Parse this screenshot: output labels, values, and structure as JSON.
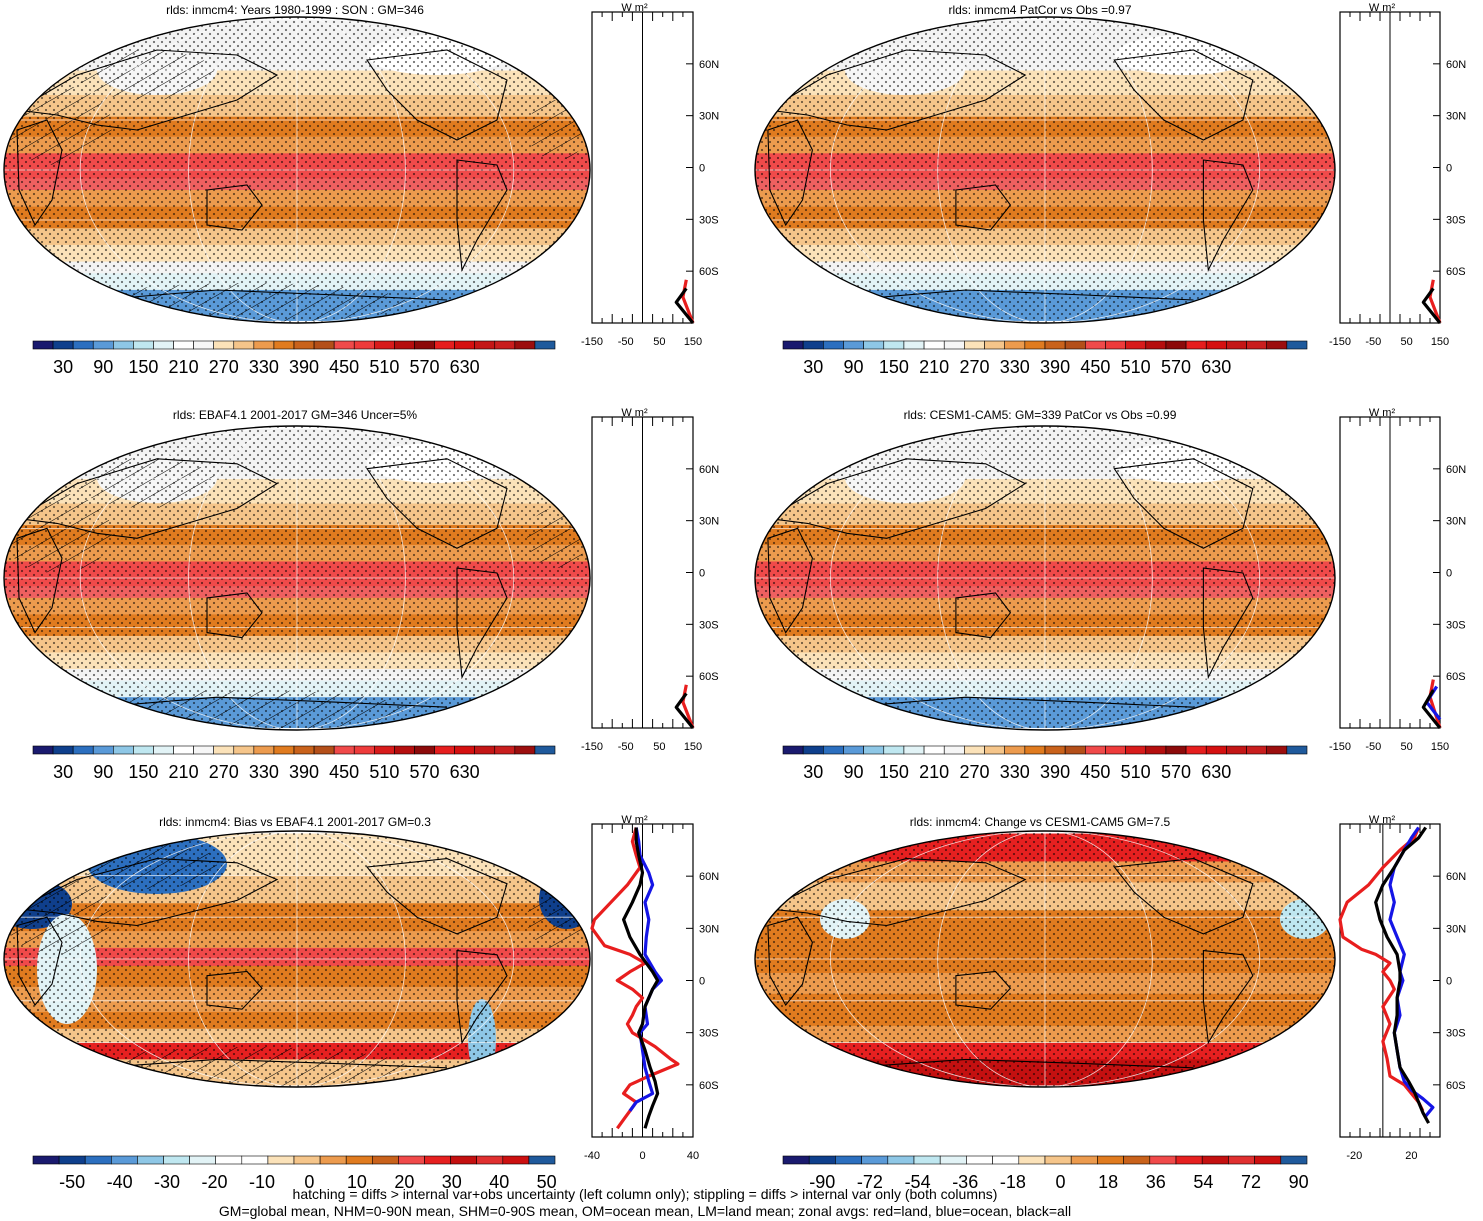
{
  "panels": [
    {
      "title": "rlds: inmcm4: Years 1980-1999 : SON : GM=346",
      "type": "climatology",
      "colorbar": [
        "30",
        "90",
        "150",
        "210",
        "270",
        "330",
        "390",
        "450",
        "510",
        "570",
        "630"
      ],
      "zonal_xticks": [
        "-150",
        "-50",
        "50",
        "150"
      ],
      "zonal_unit": "W m²",
      "lat_labels": [
        "60N",
        "30N",
        "0",
        "30S",
        "60S"
      ],
      "hatching": true
    },
    {
      "title": "rlds: inmcm4 PatCor vs Obs =0.97",
      "type": "climatology",
      "colorbar": [
        "30",
        "90",
        "150",
        "210",
        "270",
        "330",
        "390",
        "450",
        "510",
        "570",
        "630"
      ],
      "zonal_xticks": [
        "-150",
        "-50",
        "50",
        "150"
      ],
      "zonal_unit": "W m²",
      "lat_labels": [
        "60N",
        "30N",
        "0",
        "30S",
        "60S"
      ],
      "hatching": false
    },
    {
      "title": "rlds: EBAF4.1 2001-2017 GM=346 Uncer=5%",
      "type": "climatology",
      "colorbar": [
        "30",
        "90",
        "150",
        "210",
        "270",
        "330",
        "390",
        "450",
        "510",
        "570",
        "630"
      ],
      "zonal_xticks": [
        "-150",
        "-50",
        "50",
        "150"
      ],
      "zonal_unit": "W m²",
      "lat_labels": [
        "60N",
        "30N",
        "0",
        "30S",
        "60S"
      ],
      "hatching": true
    },
    {
      "title": "rlds: CESM1-CAM5: GM=339 PatCor vs Obs =0.99",
      "type": "climatology",
      "colorbar": [
        "30",
        "90",
        "150",
        "210",
        "270",
        "330",
        "390",
        "450",
        "510",
        "570",
        "630"
      ],
      "zonal_xticks": [
        "-150",
        "-50",
        "50",
        "150"
      ],
      "zonal_unit": "W m²",
      "lat_labels": [
        "60N",
        "30N",
        "0",
        "30S",
        "60S"
      ],
      "hatching": false
    },
    {
      "title": "rlds: inmcm4: Bias vs EBAF4.1 2001-2017  GM=0.3",
      "type": "bias",
      "colorbar": [
        "-50",
        "-40",
        "-30",
        "-20",
        "-10",
        "0",
        "10",
        "20",
        "30",
        "40",
        "50"
      ],
      "zonal_xticks": [
        "-40",
        "0",
        "40"
      ],
      "zonal_unit": "W m²",
      "lat_labels": [
        "60N",
        "30N",
        "0",
        "30S",
        "60S"
      ],
      "hatching": true
    },
    {
      "title": "rlds: inmcm4: Change vs CESM1-CAM5 GM=7.5",
      "type": "change",
      "colorbar": [
        "-90",
        "-72",
        "-54",
        "-36",
        "-18",
        "0",
        "18",
        "36",
        "54",
        "72",
        "90"
      ],
      "zonal_xticks": [
        "-20",
        "20"
      ],
      "zonal_unit": "W m²",
      "lat_labels": [
        "60N",
        "30N",
        "0",
        "30S",
        "60S"
      ],
      "hatching": false
    }
  ],
  "colors": {
    "clim_scale": [
      "#1a1a6e",
      "#0f3f8c",
      "#2c6fbf",
      "#5a9ad8",
      "#8ec7e6",
      "#bfe7f0",
      "#e2f3f6",
      "#ffffff",
      "#f6f6f6",
      "#fbe2b9",
      "#f5c58a",
      "#ec9b4e",
      "#e07b1f",
      "#c9621b",
      "#b44f19",
      "#f04a4a",
      "#ee3b3b",
      "#d81b1b",
      "#b50e0e",
      "#8c0a0a",
      "#e61e1e",
      "#d51010",
      "#c41616",
      "#c91e1e",
      "#9c0e0e",
      "#1f5a9c"
    ],
    "diff_scale": [
      "#1a1a6e",
      "#0f3f8c",
      "#2c6fbf",
      "#5a9ad8",
      "#8ec7e6",
      "#bfe7f0",
      "#e2f3f6",
      "#ffffff",
      "#ffffff",
      "#fbe2b9",
      "#f5c58a",
      "#ec9b4e",
      "#e07b1f",
      "#c9621b",
      "#f04a4a",
      "#e62020",
      "#c41010",
      "#e03030",
      "#cc1010",
      "#1f5a9c"
    ],
    "land": "#e81e1e",
    "ocean": "#1515e6",
    "all": "#000000"
  },
  "footer": {
    "line1": "hatching = diffs > internal var+obs uncertainty (left column only); stippling = diffs > internal var only (both columns)",
    "line2": "GM=global mean, NHM=0-90N mean, SHM=0-90S mean, OM=ocean mean, LM=land mean; zonal avgs: red=land, blue=ocean, black=all"
  },
  "chart_data": [
    {
      "type": "line",
      "title": "",
      "xlabel": "W m²",
      "ylabel": "",
      "x_range": [
        -150,
        150
      ],
      "series": [
        {
          "name": "land",
          "values": [
            [
              150,
              -90
            ],
            [
              120,
              -75
            ],
            [
              130,
              -65
            ]
          ]
        },
        {
          "name": "all",
          "values": [
            [
              150,
              -90
            ],
            [
              100,
              -78
            ],
            [
              130,
              -70
            ]
          ]
        }
      ]
    },
    {
      "type": "line",
      "title": "",
      "xlabel": "W m²",
      "ylabel": "",
      "x_range": [
        -150,
        150
      ],
      "series": [
        {
          "name": "land",
          "values": [
            [
              150,
              -90
            ],
            [
              120,
              -75
            ],
            [
              130,
              -65
            ]
          ]
        },
        {
          "name": "all",
          "values": [
            [
              150,
              -90
            ],
            [
              100,
              -78
            ],
            [
              130,
              -70
            ]
          ]
        }
      ]
    },
    {
      "type": "line",
      "title": "",
      "xlabel": "W m²",
      "ylabel": "",
      "x_range": [
        -150,
        150
      ],
      "series": [
        {
          "name": "land",
          "values": [
            [
              150,
              -90
            ],
            [
              120,
              -75
            ],
            [
              130,
              -65
            ]
          ]
        },
        {
          "name": "all",
          "values": [
            [
              150,
              -90
            ],
            [
              100,
              -78
            ],
            [
              130,
              -70
            ]
          ]
        }
      ]
    },
    {
      "type": "line",
      "title": "",
      "xlabel": "W m²",
      "ylabel": "",
      "x_range": [
        -150,
        150
      ],
      "series": [
        {
          "name": "land",
          "values": [
            [
              150,
              -90
            ],
            [
              120,
              -72
            ],
            [
              130,
              -62
            ]
          ]
        },
        {
          "name": "ocean",
          "values": [
            [
              150,
              -85
            ],
            [
              110,
              -75
            ],
            [
              140,
              -66
            ]
          ]
        },
        {
          "name": "all",
          "values": [
            [
              150,
              -90
            ],
            [
              100,
              -78
            ],
            [
              130,
              -68
            ]
          ]
        }
      ]
    },
    {
      "type": "line",
      "title": "",
      "xlabel": "W m²",
      "ylabel": "",
      "x_range": [
        -40,
        40
      ],
      "series": [
        {
          "name": "land",
          "values": [
            [
              -5,
              88
            ],
            [
              -8,
              80
            ],
            [
              -5,
              72
            ],
            [
              -2,
              65
            ],
            [
              -12,
              55
            ],
            [
              -25,
              45
            ],
            [
              -38,
              35
            ],
            [
              -40,
              30
            ],
            [
              -30,
              20
            ],
            [
              -10,
              15
            ],
            [
              2,
              10
            ],
            [
              -10,
              5
            ],
            [
              -20,
              0
            ],
            [
              -8,
              -5
            ],
            [
              0,
              -10
            ],
            [
              -5,
              -15
            ],
            [
              -8,
              -20
            ],
            [
              -12,
              -25
            ],
            [
              -8,
              -30
            ],
            [
              10,
              -38
            ],
            [
              22,
              -45
            ],
            [
              28,
              -48
            ],
            [
              15,
              -52
            ],
            [
              5,
              -55
            ],
            [
              -10,
              -60
            ],
            [
              -15,
              -65
            ],
            [
              -5,
              -70
            ],
            [
              -10,
              -75
            ],
            [
              -15,
              -80
            ],
            [
              -20,
              -85
            ]
          ]
        },
        {
          "name": "ocean",
          "values": [
            [
              -5,
              88
            ],
            [
              -3,
              80
            ],
            [
              -2,
              72
            ],
            [
              5,
              62
            ],
            [
              8,
              55
            ],
            [
              2,
              45
            ],
            [
              5,
              35
            ],
            [
              3,
              25
            ],
            [
              2,
              15
            ],
            [
              10,
              5
            ],
            [
              15,
              0
            ],
            [
              8,
              -5
            ],
            [
              2,
              -15
            ],
            [
              4,
              -25
            ],
            [
              -2,
              -30
            ],
            [
              0,
              -40
            ],
            [
              2,
              -50
            ],
            [
              5,
              -58
            ],
            [
              8,
              -65
            ],
            [
              -5,
              -70
            ],
            [
              -10,
              -75
            ]
          ]
        },
        {
          "name": "all",
          "values": [
            [
              -5,
              88
            ],
            [
              -5,
              80
            ],
            [
              -3,
              72
            ],
            [
              0,
              62
            ],
            [
              -2,
              55
            ],
            [
              -8,
              45
            ],
            [
              -15,
              35
            ],
            [
              -10,
              25
            ],
            [
              -2,
              15
            ],
            [
              8,
              5
            ],
            [
              12,
              0
            ],
            [
              8,
              -5
            ],
            [
              2,
              -15
            ],
            [
              0,
              -25
            ],
            [
              -3,
              -30
            ],
            [
              2,
              -40
            ],
            [
              6,
              -50
            ],
            [
              10,
              -58
            ],
            [
              12,
              -65
            ],
            [
              8,
              -72
            ],
            [
              5,
              -78
            ],
            [
              2,
              -85
            ]
          ]
        }
      ]
    },
    {
      "type": "line",
      "title": "",
      "xlabel": "W m²",
      "ylabel": "",
      "x_range": [
        -30,
        40
      ],
      "series": [
        {
          "name": "land",
          "values": [
            [
              25,
              88
            ],
            [
              22,
              82
            ],
            [
              12,
              75
            ],
            [
              0,
              65
            ],
            [
              -10,
              55
            ],
            [
              -25,
              45
            ],
            [
              -30,
              35
            ],
            [
              -28,
              25
            ],
            [
              -15,
              18
            ],
            [
              -5,
              15
            ],
            [
              5,
              10
            ],
            [
              0,
              5
            ],
            [
              5,
              0
            ],
            [
              8,
              -5
            ],
            [
              0,
              -15
            ],
            [
              5,
              -25
            ],
            [
              0,
              -35
            ],
            [
              3,
              -45
            ],
            [
              5,
              -55
            ],
            [
              15,
              -60
            ],
            [
              20,
              -65
            ],
            [
              25,
              -70
            ],
            [
              28,
              -75
            ]
          ]
        },
        {
          "name": "ocean",
          "values": [
            [
              25,
              88
            ],
            [
              20,
              82
            ],
            [
              15,
              75
            ],
            [
              8,
              65
            ],
            [
              5,
              55
            ],
            [
              8,
              45
            ],
            [
              5,
              35
            ],
            [
              10,
              25
            ],
            [
              15,
              15
            ],
            [
              12,
              5
            ],
            [
              14,
              0
            ],
            [
              10,
              -10
            ],
            [
              12,
              -20
            ],
            [
              8,
              -30
            ],
            [
              10,
              -40
            ],
            [
              12,
              -50
            ],
            [
              15,
              -58
            ],
            [
              20,
              -63
            ],
            [
              28,
              -68
            ],
            [
              35,
              -73
            ],
            [
              30,
              -78
            ]
          ]
        },
        {
          "name": "all",
          "values": [
            [
              30,
              88
            ],
            [
              25,
              82
            ],
            [
              15,
              75
            ],
            [
              8,
              65
            ],
            [
              0,
              55
            ],
            [
              -5,
              45
            ],
            [
              -2,
              35
            ],
            [
              3,
              25
            ],
            [
              10,
              15
            ],
            [
              12,
              5
            ],
            [
              12,
              0
            ],
            [
              10,
              -10
            ],
            [
              10,
              -20
            ],
            [
              8,
              -30
            ],
            [
              10,
              -40
            ],
            [
              12,
              -50
            ],
            [
              18,
              -58
            ],
            [
              22,
              -64
            ],
            [
              25,
              -70
            ],
            [
              28,
              -76
            ],
            [
              32,
              -82
            ]
          ]
        }
      ]
    }
  ]
}
